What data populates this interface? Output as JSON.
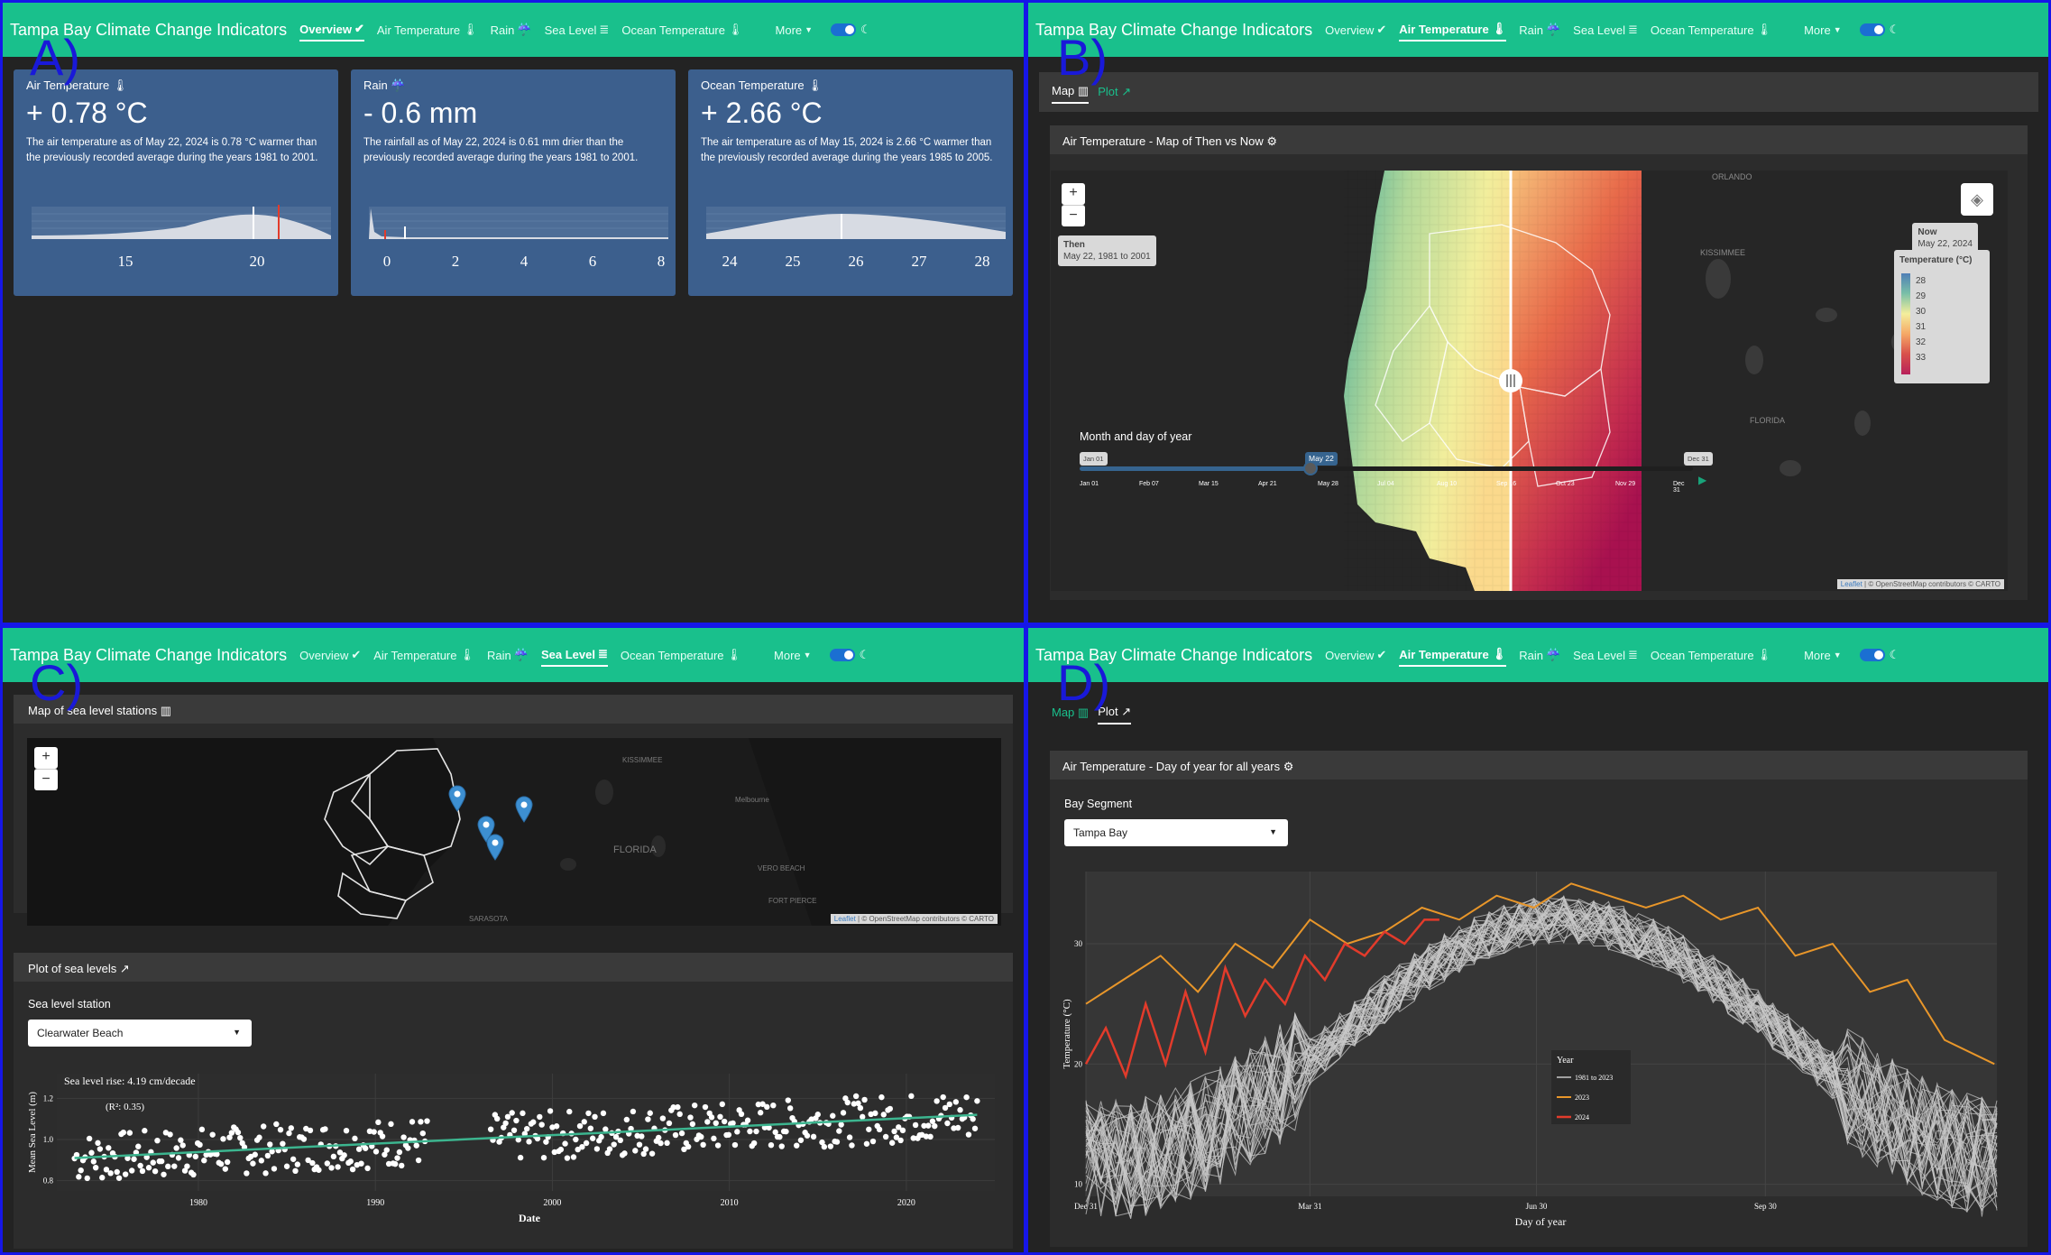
{
  "quadrants": {
    "a": "A)",
    "b": "B)",
    "c": "C)",
    "d": "D)"
  },
  "nav": {
    "brand": "Tampa Bay Climate Change Indicators",
    "items": [
      "Overview",
      "Air Temperature",
      "Rain",
      "Sea Level",
      "Ocean Temperature"
    ],
    "item_icons": [
      "check-icon",
      "thermometer-icon",
      "rain-cloud-icon",
      "waves-icon",
      "thermometer-icon"
    ],
    "more": "More",
    "dark_mode_on": true
  },
  "overview": {
    "cards": [
      {
        "title": "Air Temperature",
        "value": "+ 0.78 °C",
        "desc1": "The air temperature as of May 22, 2024 is 0.78 °C warmer than",
        "desc2": "the previously recorded average during the years 1981 to 2001.",
        "ticks": [
          "15",
          "20"
        ]
      },
      {
        "title": "Rain",
        "value": "- 0.6 mm",
        "desc1": "The rainfall as of May 22, 2024 is 0.61 mm drier than the",
        "desc2": "previously recorded average during the years 1981 to 2001.",
        "ticks": [
          "0",
          "2",
          "4",
          "6",
          "8"
        ]
      },
      {
        "title": "Ocean Temperature",
        "value": "+ 2.66 °C",
        "desc1": "The air temperature as of May 15, 2024 is 2.66 °C warmer than",
        "desc2": "the previously recorded average during the years 1985 to 2005.",
        "ticks": [
          "24",
          "25",
          "26",
          "27",
          "28"
        ]
      }
    ]
  },
  "air_map": {
    "tabs": [
      "Map",
      "Plot"
    ],
    "panel_title": "Air Temperature - Map of Then vs Now",
    "zoom_in": "+",
    "zoom_out": "−",
    "then_title": "Then",
    "then_sub": "May 22, 1981 to 2001",
    "now_title": "Now",
    "now_sub": "May 22, 2024",
    "legend_title": "Temperature (°C)",
    "legend_values": [
      "28",
      "29",
      "30",
      "31",
      "32",
      "33"
    ],
    "places": [
      "ORLANDO",
      "KISSIMMEE",
      "FLORIDA"
    ],
    "slider_label": "Month and day of year",
    "slider_start": "Jan 01",
    "slider_end": "Dec 31",
    "slider_value": "May 22",
    "slider_ticks": [
      "Jan 01",
      "Feb 07",
      "Mar 15",
      "Apr 21",
      "May 28",
      "Jul 04",
      "Aug 10",
      "Sep 16",
      "Oct 23",
      "Nov 29",
      "Dec 31"
    ],
    "attribution_leaflet": "Leaflet",
    "attribution_osm": "© OpenStreetMap contributors © CARTO"
  },
  "sea_level": {
    "map_title": "Map of sea level stations",
    "places": [
      "KISSIMMEE",
      "Melbourne",
      "FLORIDA",
      "VERO BEACH",
      "FORT PIERCE",
      "SARASOTA"
    ],
    "attribution_leaflet": "Leaflet",
    "attribution_osm": "© OpenStreetMap contributors © CARTO",
    "plot_title": "Plot of sea levels",
    "station_label": "Sea level station",
    "station_value": "Clearwater Beach",
    "rise_text": "Sea level rise: 4.19 cm/decade",
    "r2_text": "(R²: 0.35)",
    "ylabel": "Mean Sea Level (m)",
    "xlabel": "Date",
    "yticks": [
      "0.8",
      "1.0",
      "1.2"
    ],
    "xticks": [
      "1980",
      "1990",
      "2000",
      "2010",
      "2020"
    ]
  },
  "air_plot": {
    "tabs": [
      "Map",
      "Plot"
    ],
    "panel_title": "Air Temperature - Day of year for all years",
    "segment_label": "Bay Segment",
    "segment_value": "Tampa Bay",
    "ylabel": "Temperature (°C)",
    "xlabel": "Day of year",
    "yticks": [
      "10",
      "20",
      "30"
    ],
    "xticks": [
      "Dec 31",
      "Mar 31",
      "Jun 30",
      "Sep 30"
    ],
    "legend_title": "Year",
    "legend_items": [
      "1981 to 2023",
      "2023",
      "2024"
    ],
    "series_colors": {
      "past": "#c8c8c8",
      "y2023": "#e8962a",
      "y2024": "#e23b2b"
    }
  },
  "chart_data": [
    {
      "type": "scatter",
      "title": "Sea level rise: 4.19 cm/decade",
      "xlabel": "Date",
      "ylabel": "Mean Sea Level (m)",
      "xlim": [
        1972,
        2025
      ],
      "ylim": [
        0.75,
        1.32
      ],
      "trend": {
        "x": [
          1973,
          2024
        ],
        "y": [
          0.91,
          1.12
        ]
      },
      "annotation": "(R²: 0.35)"
    },
    {
      "type": "line",
      "xlabel": "Day of year",
      "ylabel": "Temperature (°C)",
      "xlim": [
        0,
        366
      ],
      "ylim": [
        9,
        36
      ],
      "series": [
        {
          "name": "1981 to 2023",
          "values_note": "43 grey background years"
        },
        {
          "name": "2023",
          "x": [
            0,
            15,
            30,
            45,
            60,
            75,
            90,
            105,
            120,
            135,
            150,
            165,
            180,
            195,
            210,
            225,
            240,
            255,
            270,
            285,
            300,
            315,
            330,
            345,
            365
          ],
          "values": [
            25,
            27,
            29,
            26,
            30,
            28,
            32,
            30,
            31,
            33,
            32,
            34,
            33,
            35,
            34,
            33,
            34,
            32,
            33,
            29,
            30,
            26,
            27,
            22,
            20
          ]
        },
        {
          "name": "2024",
          "x": [
            0,
            8,
            16,
            24,
            32,
            40,
            48,
            56,
            64,
            72,
            80,
            88,
            96,
            104,
            112,
            120,
            128,
            136,
            142
          ],
          "values": [
            20,
            23,
            19,
            25,
            20,
            26,
            21,
            28,
            24,
            27,
            25,
            29,
            27,
            30,
            29,
            31,
            30,
            32,
            32
          ]
        }
      ]
    }
  ]
}
